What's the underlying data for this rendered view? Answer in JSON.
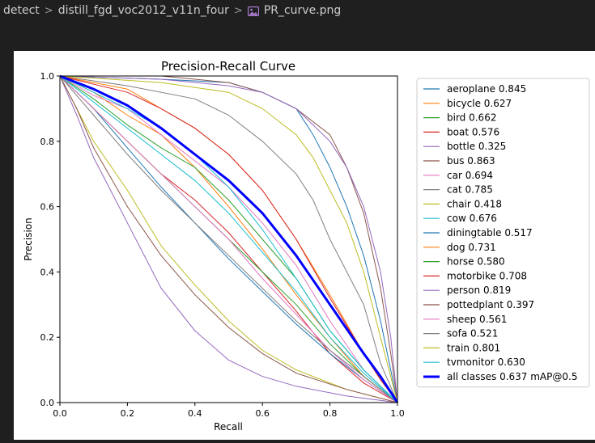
{
  "breadcrumb": {
    "items": [
      "detect",
      "distill_fgd_voc2012_v11n_four",
      "PR_curve.png"
    ],
    "separator": ">",
    "file_icon": "image-file-icon"
  },
  "chart_data": {
    "type": "line",
    "title": "Precision-Recall Curve",
    "xlabel": "Recall",
    "ylabel": "Precision",
    "xlim": [
      0.0,
      1.0
    ],
    "ylim": [
      0.0,
      1.0
    ],
    "xticks": [
      "0.0",
      "0.2",
      "0.4",
      "0.6",
      "0.8",
      "1.0"
    ],
    "yticks": [
      "0.0",
      "0.2",
      "0.4",
      "0.6",
      "0.8",
      "1.0"
    ],
    "grid": false,
    "legend_position": "outside-right",
    "series": [
      {
        "name": "aeroplane",
        "ap": "0.845",
        "color": "#1f77b4",
        "values": [
          [
            0,
            1
          ],
          [
            0.3,
            0.99
          ],
          [
            0.5,
            0.98
          ],
          [
            0.6,
            0.95
          ],
          [
            0.7,
            0.9
          ],
          [
            0.75,
            0.82
          ],
          [
            0.8,
            0.72
          ],
          [
            0.85,
            0.6
          ],
          [
            0.9,
            0.45
          ],
          [
            0.95,
            0.25
          ],
          [
            1,
            0
          ]
        ]
      },
      {
        "name": "bicycle",
        "ap": "0.627",
        "color": "#ff7f0e",
        "values": [
          [
            0,
            1
          ],
          [
            0.1,
            0.95
          ],
          [
            0.2,
            0.88
          ],
          [
            0.3,
            0.82
          ],
          [
            0.4,
            0.72
          ],
          [
            0.5,
            0.6
          ],
          [
            0.6,
            0.47
          ],
          [
            0.7,
            0.33
          ],
          [
            0.8,
            0.2
          ],
          [
            0.9,
            0.08
          ],
          [
            1,
            0
          ]
        ]
      },
      {
        "name": "bird",
        "ap": "0.662",
        "color": "#2ca02c",
        "values": [
          [
            0,
            1
          ],
          [
            0.1,
            0.93
          ],
          [
            0.2,
            0.85
          ],
          [
            0.3,
            0.78
          ],
          [
            0.4,
            0.72
          ],
          [
            0.5,
            0.62
          ],
          [
            0.6,
            0.5
          ],
          [
            0.7,
            0.38
          ],
          [
            0.8,
            0.22
          ],
          [
            0.9,
            0.1
          ],
          [
            1,
            0
          ]
        ]
      },
      {
        "name": "boat",
        "ap": "0.576",
        "color": "#d62728",
        "values": [
          [
            0,
            1
          ],
          [
            0.1,
            0.9
          ],
          [
            0.2,
            0.8
          ],
          [
            0.3,
            0.7
          ],
          [
            0.4,
            0.62
          ],
          [
            0.5,
            0.52
          ],
          [
            0.6,
            0.4
          ],
          [
            0.7,
            0.28
          ],
          [
            0.8,
            0.15
          ],
          [
            0.9,
            0.06
          ],
          [
            1,
            0
          ]
        ]
      },
      {
        "name": "bottle",
        "ap": "0.325",
        "color": "#9467bd",
        "values": [
          [
            0,
            1
          ],
          [
            0.05,
            0.88
          ],
          [
            0.1,
            0.75
          ],
          [
            0.2,
            0.55
          ],
          [
            0.3,
            0.35
          ],
          [
            0.4,
            0.22
          ],
          [
            0.5,
            0.13
          ],
          [
            0.6,
            0.08
          ],
          [
            0.7,
            0.05
          ],
          [
            0.85,
            0.02
          ],
          [
            1,
            0
          ]
        ]
      },
      {
        "name": "bus",
        "ap": "0.863",
        "color": "#8c564b",
        "values": [
          [
            0,
            1
          ],
          [
            0.3,
            1
          ],
          [
            0.5,
            0.98
          ],
          [
            0.6,
            0.95
          ],
          [
            0.7,
            0.9
          ],
          [
            0.8,
            0.82
          ],
          [
            0.85,
            0.72
          ],
          [
            0.9,
            0.58
          ],
          [
            0.95,
            0.35
          ],
          [
            0.98,
            0.15
          ],
          [
            1,
            0
          ]
        ]
      },
      {
        "name": "car",
        "ap": "0.694",
        "color": "#e377c2",
        "values": [
          [
            0,
            1
          ],
          [
            0.1,
            0.94
          ],
          [
            0.2,
            0.9
          ],
          [
            0.3,
            0.82
          ],
          [
            0.4,
            0.74
          ],
          [
            0.5,
            0.66
          ],
          [
            0.6,
            0.55
          ],
          [
            0.7,
            0.42
          ],
          [
            0.8,
            0.25
          ],
          [
            0.9,
            0.1
          ],
          [
            1,
            0
          ]
        ]
      },
      {
        "name": "cat",
        "ap": "0.785",
        "color": "#7f7f7f",
        "values": [
          [
            0,
            1
          ],
          [
            0.2,
            0.97
          ],
          [
            0.4,
            0.93
          ],
          [
            0.5,
            0.88
          ],
          [
            0.6,
            0.8
          ],
          [
            0.7,
            0.7
          ],
          [
            0.75,
            0.62
          ],
          [
            0.8,
            0.5
          ],
          [
            0.9,
            0.3
          ],
          [
            0.95,
            0.12
          ],
          [
            1,
            0
          ]
        ]
      },
      {
        "name": "chair",
        "ap": "0.418",
        "color": "#bcbd22",
        "values": [
          [
            0,
            1
          ],
          [
            0.05,
            0.9
          ],
          [
            0.1,
            0.8
          ],
          [
            0.2,
            0.65
          ],
          [
            0.3,
            0.48
          ],
          [
            0.4,
            0.36
          ],
          [
            0.5,
            0.25
          ],
          [
            0.6,
            0.16
          ],
          [
            0.7,
            0.1
          ],
          [
            0.85,
            0.04
          ],
          [
            1,
            0
          ]
        ]
      },
      {
        "name": "cow",
        "ap": "0.676",
        "color": "#17becf",
        "values": [
          [
            0,
            1
          ],
          [
            0.1,
            0.95
          ],
          [
            0.2,
            0.9
          ],
          [
            0.3,
            0.84
          ],
          [
            0.4,
            0.76
          ],
          [
            0.5,
            0.66
          ],
          [
            0.6,
            0.53
          ],
          [
            0.7,
            0.38
          ],
          [
            0.8,
            0.22
          ],
          [
            0.9,
            0.1
          ],
          [
            1,
            0
          ]
        ]
      },
      {
        "name": "diningtable",
        "ap": "0.517",
        "color": "#1f77b4",
        "values": [
          [
            0,
            1
          ],
          [
            0.1,
            0.9
          ],
          [
            0.2,
            0.78
          ],
          [
            0.3,
            0.66
          ],
          [
            0.4,
            0.55
          ],
          [
            0.5,
            0.44
          ],
          [
            0.6,
            0.34
          ],
          [
            0.7,
            0.24
          ],
          [
            0.8,
            0.15
          ],
          [
            0.9,
            0.07
          ],
          [
            1,
            0
          ]
        ]
      },
      {
        "name": "dog",
        "ap": "0.731",
        "color": "#ff7f0e",
        "values": [
          [
            0,
            1
          ],
          [
            0.2,
            0.96
          ],
          [
            0.3,
            0.9
          ],
          [
            0.4,
            0.84
          ],
          [
            0.5,
            0.76
          ],
          [
            0.6,
            0.65
          ],
          [
            0.7,
            0.5
          ],
          [
            0.8,
            0.33
          ],
          [
            0.9,
            0.15
          ],
          [
            0.95,
            0.07
          ],
          [
            1,
            0
          ]
        ]
      },
      {
        "name": "horse",
        "ap": "0.580",
        "color": "#2ca02c",
        "values": [
          [
            0,
            1
          ],
          [
            0.1,
            0.9
          ],
          [
            0.2,
            0.8
          ],
          [
            0.3,
            0.7
          ],
          [
            0.4,
            0.6
          ],
          [
            0.5,
            0.5
          ],
          [
            0.6,
            0.4
          ],
          [
            0.7,
            0.3
          ],
          [
            0.8,
            0.18
          ],
          [
            0.9,
            0.08
          ],
          [
            1,
            0
          ]
        ]
      },
      {
        "name": "motorbike",
        "ap": "0.708",
        "color": "#d62728",
        "values": [
          [
            0,
            1
          ],
          [
            0.2,
            0.95
          ],
          [
            0.3,
            0.9
          ],
          [
            0.4,
            0.84
          ],
          [
            0.5,
            0.76
          ],
          [
            0.6,
            0.65
          ],
          [
            0.7,
            0.5
          ],
          [
            0.8,
            0.32
          ],
          [
            0.9,
            0.15
          ],
          [
            0.95,
            0.07
          ],
          [
            1,
            0
          ]
        ]
      },
      {
        "name": "person",
        "ap": "0.819",
        "color": "#9467bd",
        "values": [
          [
            0,
            1
          ],
          [
            0.3,
            0.99
          ],
          [
            0.5,
            0.97
          ],
          [
            0.6,
            0.95
          ],
          [
            0.7,
            0.9
          ],
          [
            0.8,
            0.8
          ],
          [
            0.85,
            0.72
          ],
          [
            0.9,
            0.6
          ],
          [
            0.95,
            0.4
          ],
          [
            0.98,
            0.2
          ],
          [
            1,
            0
          ]
        ]
      },
      {
        "name": "pottedplant",
        "ap": "0.397",
        "color": "#8c564b",
        "values": [
          [
            0,
            1
          ],
          [
            0.05,
            0.9
          ],
          [
            0.1,
            0.78
          ],
          [
            0.2,
            0.6
          ],
          [
            0.3,
            0.45
          ],
          [
            0.4,
            0.33
          ],
          [
            0.5,
            0.23
          ],
          [
            0.6,
            0.15
          ],
          [
            0.7,
            0.09
          ],
          [
            0.85,
            0.04
          ],
          [
            1,
            0
          ]
        ]
      },
      {
        "name": "sheep",
        "ap": "0.561",
        "color": "#e377c2",
        "values": [
          [
            0,
            1
          ],
          [
            0.1,
            0.9
          ],
          [
            0.2,
            0.8
          ],
          [
            0.3,
            0.7
          ],
          [
            0.4,
            0.6
          ],
          [
            0.5,
            0.5
          ],
          [
            0.6,
            0.38
          ],
          [
            0.7,
            0.27
          ],
          [
            0.8,
            0.16
          ],
          [
            0.9,
            0.07
          ],
          [
            1,
            0
          ]
        ]
      },
      {
        "name": "sofa",
        "ap": "0.521",
        "color": "#7f7f7f",
        "values": [
          [
            0,
            1
          ],
          [
            0.1,
            0.88
          ],
          [
            0.2,
            0.76
          ],
          [
            0.3,
            0.65
          ],
          [
            0.4,
            0.55
          ],
          [
            0.5,
            0.45
          ],
          [
            0.6,
            0.35
          ],
          [
            0.7,
            0.25
          ],
          [
            0.8,
            0.16
          ],
          [
            0.9,
            0.08
          ],
          [
            1,
            0
          ]
        ]
      },
      {
        "name": "train",
        "ap": "0.801",
        "color": "#bcbd22",
        "values": [
          [
            0,
            1
          ],
          [
            0.3,
            0.98
          ],
          [
            0.5,
            0.95
          ],
          [
            0.6,
            0.9
          ],
          [
            0.7,
            0.82
          ],
          [
            0.75,
            0.75
          ],
          [
            0.8,
            0.65
          ],
          [
            0.85,
            0.55
          ],
          [
            0.9,
            0.4
          ],
          [
            0.95,
            0.2
          ],
          [
            1,
            0
          ]
        ]
      },
      {
        "name": "tvmonitor",
        "ap": "0.630",
        "color": "#17becf",
        "values": [
          [
            0,
            1
          ],
          [
            0.1,
            0.92
          ],
          [
            0.2,
            0.84
          ],
          [
            0.3,
            0.76
          ],
          [
            0.4,
            0.68
          ],
          [
            0.5,
            0.58
          ],
          [
            0.6,
            0.46
          ],
          [
            0.7,
            0.34
          ],
          [
            0.8,
            0.2
          ],
          [
            0.9,
            0.09
          ],
          [
            1,
            0
          ]
        ]
      }
    ],
    "summary_series": {
      "name": "all classes",
      "label": "all classes 0.637 mAP@0.5",
      "color": "#0000ff",
      "values": [
        [
          0,
          1
        ],
        [
          0.05,
          0.98
        ],
        [
          0.1,
          0.96
        ],
        [
          0.2,
          0.91
        ],
        [
          0.3,
          0.84
        ],
        [
          0.4,
          0.76
        ],
        [
          0.5,
          0.68
        ],
        [
          0.6,
          0.58
        ],
        [
          0.7,
          0.45
        ],
        [
          0.8,
          0.3
        ],
        [
          0.9,
          0.15
        ],
        [
          0.95,
          0.08
        ],
        [
          1,
          0
        ]
      ]
    }
  }
}
